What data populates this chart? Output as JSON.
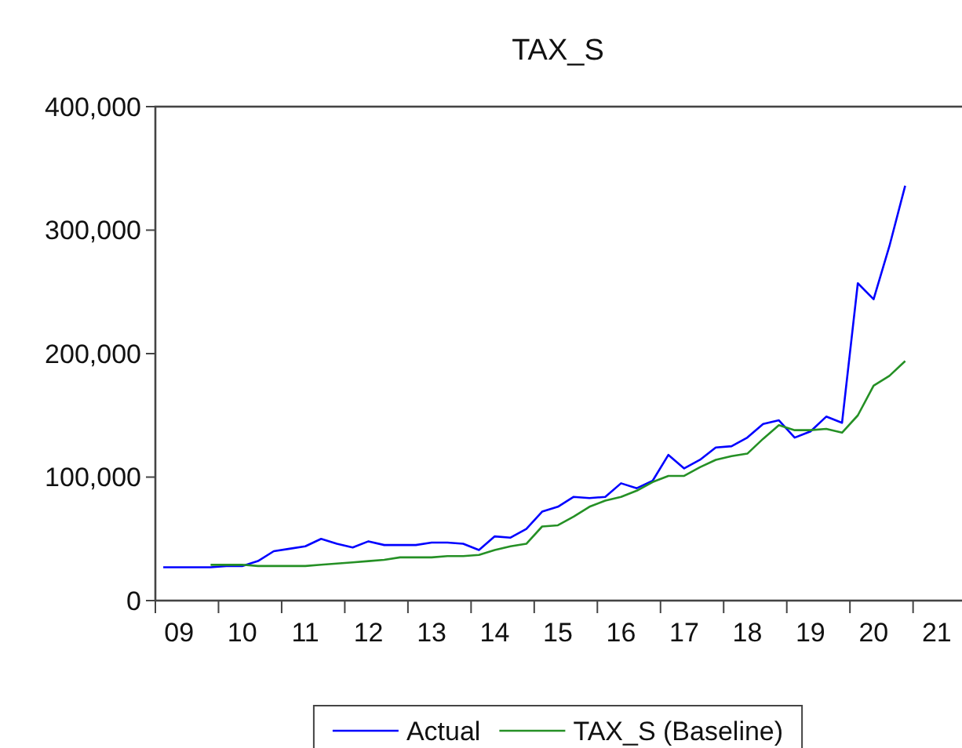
{
  "chart_data": {
    "type": "line",
    "title": "TAX_S",
    "categories": [
      null,
      "09",
      null,
      null,
      null,
      "10",
      null,
      null,
      null,
      "11",
      null,
      null,
      null,
      "12",
      null,
      null,
      null,
      "13",
      null,
      null,
      null,
      "14",
      null,
      null,
      null,
      "15",
      null,
      null,
      null,
      "16",
      null,
      null,
      null,
      "17",
      null,
      null,
      null,
      "18",
      null,
      null,
      null,
      "19",
      null,
      null,
      null,
      "20",
      null,
      null,
      null,
      "21",
      null
    ],
    "series": [
      {
        "name": "Actual",
        "color": "#0000ff",
        "values": [
          27000,
          27000,
          27000,
          27000,
          28000,
          28000,
          32000,
          40000,
          42000,
          44000,
          50000,
          46000,
          43000,
          48000,
          45000,
          45000,
          45000,
          47000,
          47000,
          46000,
          41000,
          52000,
          51000,
          58000,
          72000,
          76000,
          84000,
          83000,
          84000,
          95000,
          91000,
          97000,
          118000,
          107000,
          114000,
          124000,
          125000,
          132000,
          143000,
          146000,
          132000,
          137000,
          149000,
          144000,
          257000,
          244000,
          287000,
          336000,
          null,
          null,
          null
        ]
      },
      {
        "name": "TAX_S (Baseline)",
        "color": "#259025",
        "values": [
          null,
          null,
          null,
          29000,
          29000,
          29000,
          28000,
          28000,
          28000,
          28000,
          29000,
          30000,
          31000,
          32000,
          33000,
          35000,
          35000,
          35000,
          36000,
          36000,
          37000,
          41000,
          44000,
          46000,
          60000,
          61000,
          68000,
          76000,
          81000,
          84000,
          89000,
          96000,
          101000,
          101000,
          108000,
          114000,
          117000,
          119000,
          131000,
          142000,
          138000,
          138000,
          139000,
          136000,
          150000,
          174000,
          182000,
          194000,
          null,
          null,
          null
        ]
      }
    ],
    "ylim": [
      0,
      400000
    ],
    "yticks": [
      {
        "value": 0,
        "label": "0"
      },
      {
        "value": 100000,
        "label": "100,000"
      },
      {
        "value": 200000,
        "label": "200,000"
      },
      {
        "value": 300000,
        "label": "300,000"
      },
      {
        "value": 400000,
        "label": "400,000"
      }
    ],
    "legend": "bottom",
    "line_style": "solid"
  }
}
